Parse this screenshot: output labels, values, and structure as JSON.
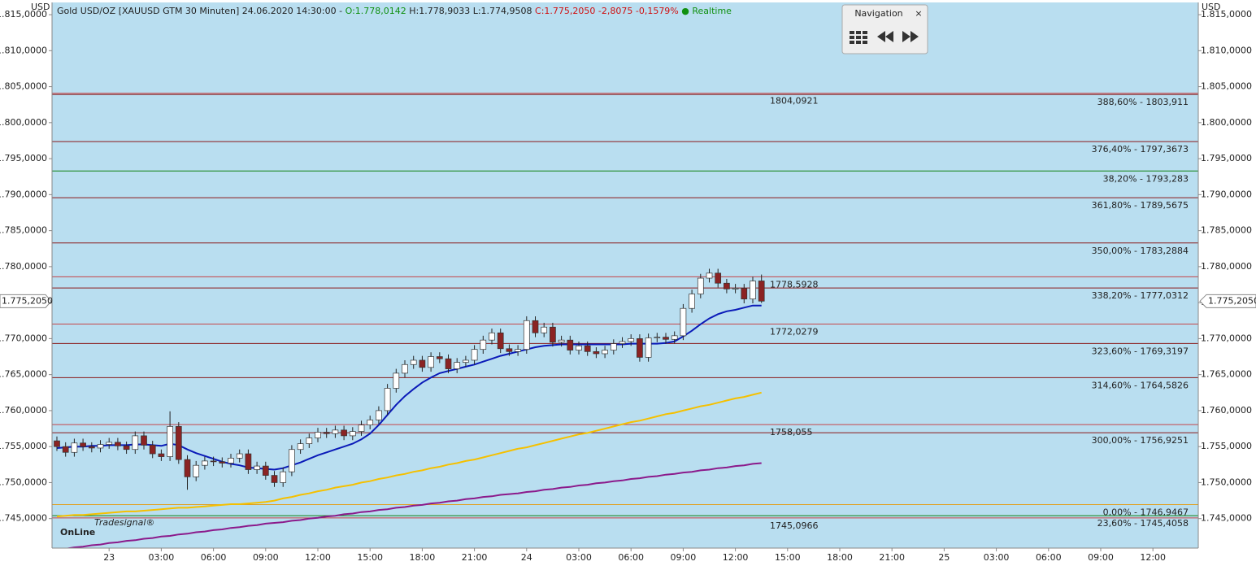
{
  "chart_data": {
    "type": "candlestick",
    "header": [
      {
        "text": "Gold USD/OZ [XAUUSD GTM 30 Minuten] 24.06.2020 14:30:00 - ",
        "color": "#222222"
      },
      {
        "text": "O:1.778,0142",
        "color": "#109010"
      },
      {
        "text": " H:1.778,9033 L:1.774,9508 ",
        "color": "#222222"
      },
      {
        "text": "C:1.775,2050 -2,8075 -0,1579%",
        "color": "#d01010"
      },
      {
        "text": " ● Realtime",
        "color": "#109010"
      }
    ],
    "unit": "USD",
    "navigation": {
      "title": "Navigation",
      "close": "×"
    },
    "logo": {
      "small": "Tradesignal®",
      "big": "OnLine"
    },
    "ylim": [
      1740.9,
      1816.7
    ],
    "yticks": [
      {
        "value": 1745,
        "label": "1.745,0000"
      },
      {
        "value": 1750,
        "label": "1.750,0000"
      },
      {
        "value": 1755,
        "label": "1.755,0000"
      },
      {
        "value": 1760,
        "label": "1.760,0000"
      },
      {
        "value": 1765,
        "label": "1.765,0000"
      },
      {
        "value": 1770,
        "label": "1.770,0000"
      },
      {
        "value": 1775,
        "label": "1.775,0000"
      },
      {
        "value": 1780,
        "label": "1.780,0000"
      },
      {
        "value": 1785,
        "label": "1.785,0000"
      },
      {
        "value": 1790,
        "label": "1.790,0000"
      },
      {
        "value": 1795,
        "label": "1.795,0000"
      },
      {
        "value": 1800,
        "label": "1.800,0000"
      },
      {
        "value": 1805,
        "label": "1.805,0000"
      },
      {
        "value": 1810,
        "label": "1.810,0000"
      },
      {
        "value": 1815,
        "label": "1.815,0000"
      }
    ],
    "last_price": {
      "value": 1775.205,
      "label": "1.775,2050"
    },
    "up_color": "#ffffff",
    "down_color": "#8b2323",
    "background": "#b9def0",
    "categories": [
      null,
      null,
      null,
      null,
      null,
      null,
      "23",
      null,
      null,
      null,
      null,
      null,
      "03:00",
      null,
      null,
      null,
      null,
      null,
      "06:00",
      null,
      null,
      null,
      null,
      null,
      "09:00",
      null,
      null,
      null,
      null,
      null,
      "12:00",
      null,
      null,
      null,
      null,
      null,
      "15:00",
      null,
      null,
      null,
      null,
      null,
      "18:00",
      null,
      null,
      null,
      null,
      null,
      "21:00",
      null,
      null,
      null,
      null,
      null,
      "24",
      null,
      null,
      null,
      null,
      null,
      "03:00",
      null,
      null,
      null,
      null,
      null,
      "06:00",
      null,
      null,
      null,
      null,
      null,
      "09:00",
      null,
      null,
      null,
      null,
      null,
      "12:00",
      null,
      null,
      null,
      null,
      null,
      "15:00",
      null,
      null,
      null,
      null,
      null,
      "18:00",
      null,
      null,
      null,
      null,
      null,
      "21:00",
      null,
      null,
      null,
      null,
      null,
      "25",
      null,
      null,
      null,
      null,
      null,
      "03:00",
      null,
      null,
      null,
      null,
      null,
      "06:00",
      null,
      null,
      null,
      null,
      null,
      "09:00",
      null,
      null,
      null,
      null,
      null,
      "12:00",
      null,
      null,
      null,
      null
    ],
    "open": [
      1755.8,
      1755.0,
      1754.2,
      1755.5,
      1755.0,
      1754.8,
      1755.3,
      1755.6,
      1755.1,
      1754.6,
      1756.5,
      1755.2,
      1754.0,
      1753.6,
      1757.8,
      1753.2,
      1750.8,
      1752.4,
      1753.0,
      1752.9,
      1752.7,
      1753.4,
      1754.0,
      1751.8,
      1752.3,
      1751.0,
      1750.0,
      1751.5,
      1754.6,
      1755.4,
      1756.2,
      1757.0,
      1756.8,
      1757.3,
      1756.5,
      1757.1,
      1758.0,
      1758.7,
      1760.0,
      1763.1,
      1765.2,
      1766.4,
      1767.0,
      1766.0,
      1767.5,
      1767.2,
      1765.8,
      1766.7,
      1767.0,
      1768.5,
      1769.8,
      1770.8,
      1768.6,
      1768.2,
      1768.5,
      1772.5,
      1770.8,
      1771.6,
      1769.5,
      1769.8,
      1768.4,
      1769.0,
      1768.2,
      1767.9,
      1768.4,
      1769.3,
      1769.6,
      1770.0,
      1767.4,
      1770.1,
      1770.2,
      1769.9,
      1770.4,
      1774.2,
      1776.2,
      1778.4,
      1779.1,
      1777.7,
      1776.9,
      1777.0,
      1775.5,
      1778.0142,
      null,
      null,
      null,
      null,
      null,
      null,
      null,
      null,
      null,
      null,
      null,
      null,
      null,
      null,
      null,
      null,
      null,
      null,
      null,
      null,
      null,
      null,
      null,
      null,
      null,
      null,
      null,
      null,
      null,
      null,
      null,
      null,
      null,
      null,
      null,
      null,
      null,
      null,
      null,
      null,
      null,
      null,
      null,
      null,
      null,
      null,
      null,
      null,
      null
    ],
    "high": [
      1756.4,
      1755.6,
      1756.1,
      1756.1,
      1755.6,
      1755.9,
      1756.2,
      1756.2,
      1755.7,
      1757.1,
      1757.1,
      1755.8,
      1754.6,
      1759.9,
      1758.4,
      1753.8,
      1753.0,
      1753.6,
      1753.6,
      1753.5,
      1754.0,
      1754.6,
      1754.6,
      1752.9,
      1752.9,
      1751.6,
      1752.1,
      1755.2,
      1756.0,
      1756.8,
      1757.6,
      1757.6,
      1757.9,
      1757.9,
      1757.7,
      1758.6,
      1759.3,
      1760.6,
      1763.7,
      1765.8,
      1767.0,
      1767.6,
      1767.6,
      1768.1,
      1768.1,
      1767.8,
      1767.3,
      1767.6,
      1769.1,
      1770.4,
      1771.4,
      1771.4,
      1769.2,
      1769.1,
      1773.1,
      1773.1,
      1772.2,
      1772.2,
      1770.4,
      1770.4,
      1769.6,
      1769.6,
      1768.8,
      1769.0,
      1769.9,
      1770.2,
      1770.6,
      1770.6,
      1770.7,
      1770.8,
      1770.8,
      1771.0,
      1774.8,
      1776.8,
      1779.0,
      1779.7,
      1779.7,
      1778.3,
      1777.6,
      1777.6,
      1778.6,
      1778.9033,
      null,
      null,
      null,
      null,
      null,
      null,
      null,
      null,
      null,
      null,
      null,
      null,
      null,
      null,
      null,
      null,
      null,
      null,
      null,
      null,
      null,
      null,
      null,
      null,
      null,
      null,
      null,
      null,
      null,
      null,
      null,
      null,
      null,
      null,
      null,
      null,
      null,
      null,
      null,
      null,
      null,
      null,
      null,
      null,
      null,
      null,
      null,
      null,
      null
    ],
    "low": [
      1754.4,
      1753.6,
      1753.6,
      1754.4,
      1754.2,
      1754.2,
      1754.7,
      1754.5,
      1754.0,
      1754.0,
      1754.6,
      1753.4,
      1753.0,
      1753.0,
      1752.6,
      1749.0,
      1750.2,
      1751.8,
      1752.3,
      1752.1,
      1752.1,
      1752.8,
      1751.2,
      1751.2,
      1750.4,
      1749.4,
      1749.4,
      1750.9,
      1754.0,
      1754.8,
      1755.6,
      1756.2,
      1756.2,
      1755.9,
      1755.9,
      1756.5,
      1757.4,
      1758.1,
      1759.4,
      1762.5,
      1764.6,
      1765.8,
      1765.4,
      1765.4,
      1766.6,
      1765.2,
      1765.2,
      1766.1,
      1766.4,
      1767.9,
      1769.2,
      1768.0,
      1767.6,
      1767.6,
      1767.9,
      1770.2,
      1770.2,
      1768.9,
      1768.9,
      1767.8,
      1767.8,
      1767.6,
      1767.3,
      1767.3,
      1767.8,
      1768.7,
      1769.0,
      1766.8,
      1766.8,
      1769.5,
      1769.3,
      1769.3,
      1769.8,
      1773.6,
      1775.6,
      1777.8,
      1777.1,
      1776.3,
      1776.3,
      1774.9,
      1774.9,
      1774.9508,
      null,
      null,
      null,
      null,
      null,
      null,
      null,
      null,
      null,
      null,
      null,
      null,
      null,
      null,
      null,
      null,
      null,
      null,
      null,
      null,
      null,
      null,
      null,
      null,
      null,
      null,
      null,
      null,
      null,
      null,
      null,
      null,
      null,
      null,
      null,
      null,
      null,
      null,
      null,
      null,
      null,
      null,
      null,
      null,
      null,
      null,
      null,
      null,
      null
    ],
    "close": [
      1755.0,
      1754.2,
      1755.5,
      1755.0,
      1754.8,
      1755.3,
      1755.6,
      1755.1,
      1754.6,
      1756.5,
      1755.2,
      1754.0,
      1753.6,
      1757.8,
      1753.2,
      1750.8,
      1752.4,
      1753.0,
      1752.9,
      1752.7,
      1753.4,
      1754.0,
      1751.8,
      1752.3,
      1751.0,
      1750.0,
      1751.5,
      1754.6,
      1755.4,
      1756.2,
      1757.0,
      1756.8,
      1757.3,
      1756.5,
      1757.1,
      1758.0,
      1758.7,
      1760.0,
      1763.1,
      1765.2,
      1766.4,
      1767.0,
      1766.0,
      1767.5,
      1767.2,
      1765.8,
      1766.7,
      1767.0,
      1768.5,
      1769.8,
      1770.8,
      1768.6,
      1768.2,
      1768.5,
      1772.5,
      1770.8,
      1771.6,
      1769.5,
      1769.8,
      1768.4,
      1769.0,
      1768.2,
      1767.9,
      1768.4,
      1769.3,
      1769.6,
      1770.0,
      1767.4,
      1770.1,
      1770.2,
      1769.9,
      1770.4,
      1774.2,
      1776.2,
      1778.4,
      1779.1,
      1777.7,
      1776.9,
      1777.0,
      1775.5,
      1778.0,
      1775.205,
      null,
      null,
      null,
      null,
      null,
      null,
      null,
      null,
      null,
      null,
      null,
      null,
      null,
      null,
      null,
      null,
      null,
      null,
      null,
      null,
      null,
      null,
      null,
      null,
      null,
      null,
      null,
      null,
      null,
      null,
      null,
      null,
      null,
      null,
      null,
      null,
      null,
      null,
      null,
      null,
      null,
      null,
      null,
      null,
      null,
      null,
      null,
      null,
      null
    ],
    "series": [
      {
        "type": "line",
        "color": "#f5c000",
        "values": [
          1745.3,
          1745.4,
          1745.5,
          1745.5,
          1745.6,
          1745.7,
          1745.8,
          1745.9,
          1746.0,
          1746.0,
          1746.1,
          1746.2,
          1746.3,
          1746.4,
          1746.5,
          1746.5,
          1746.6,
          1746.7,
          1746.8,
          1746.9,
          1747.0,
          1747.0,
          1747.1,
          1747.2,
          1747.3,
          1747.5,
          1747.8,
          1748.0,
          1748.3,
          1748.5,
          1748.8,
          1749.0,
          1749.3,
          1749.5,
          1749.7,
          1750.0,
          1750.2,
          1750.5,
          1750.7,
          1751.0,
          1751.2,
          1751.5,
          1751.7,
          1752.0,
          1752.2,
          1752.5,
          1752.7,
          1753.0,
          1753.2,
          1753.5,
          1753.8,
          1754.1,
          1754.4,
          1754.7,
          1754.9,
          1755.2,
          1755.5,
          1755.8,
          1756.1,
          1756.4,
          1756.7,
          1756.9,
          1757.2,
          1757.5,
          1757.8,
          1758.1,
          1758.4,
          1758.6,
          1758.9,
          1759.2,
          1759.5,
          1759.7,
          1760.0,
          1760.3,
          1760.6,
          1760.8,
          1761.1,
          1761.4,
          1761.7,
          1761.9,
          1762.2,
          1762.5,
          null,
          null,
          null,
          null,
          null,
          null,
          null,
          null,
          null,
          null,
          null,
          null,
          null,
          null,
          null,
          null,
          null,
          null,
          null,
          null,
          null,
          null,
          null,
          null,
          null,
          null,
          null,
          null,
          null,
          null,
          null,
          null,
          null,
          null,
          null,
          null,
          null,
          null,
          null,
          null,
          null,
          null,
          null,
          null,
          null,
          null,
          null,
          null,
          null
        ]
      },
      {
        "type": "line",
        "color": "#8b1a8b",
        "values": [
          1740.7,
          1740.8,
          1741.0,
          1741.1,
          1741.3,
          1741.4,
          1741.6,
          1741.7,
          1741.9,
          1742.0,
          1742.2,
          1742.3,
          1742.5,
          1742.6,
          1742.8,
          1742.9,
          1743.1,
          1743.2,
          1743.4,
          1743.5,
          1743.7,
          1743.8,
          1744.0,
          1744.1,
          1744.3,
          1744.4,
          1744.5,
          1744.7,
          1744.8,
          1745.0,
          1745.1,
          1745.3,
          1745.4,
          1745.6,
          1745.7,
          1745.9,
          1746.0,
          1746.2,
          1746.3,
          1746.5,
          1746.6,
          1746.8,
          1746.9,
          1747.1,
          1747.2,
          1747.4,
          1747.5,
          1747.7,
          1747.8,
          1748.0,
          1748.1,
          1748.3,
          1748.4,
          1748.5,
          1748.7,
          1748.8,
          1749.0,
          1749.1,
          1749.3,
          1749.4,
          1749.6,
          1749.7,
          1749.9,
          1750.0,
          1750.2,
          1750.3,
          1750.5,
          1750.6,
          1750.8,
          1750.9,
          1751.1,
          1751.2,
          1751.4,
          1751.5,
          1751.7,
          1751.8,
          1752.0,
          1752.1,
          1752.3,
          1752.4,
          1752.6,
          1752.7,
          null,
          null,
          null,
          null,
          null,
          null,
          null,
          null,
          null,
          null,
          null,
          null,
          null,
          null,
          null,
          null,
          null,
          null,
          null,
          null,
          null,
          null,
          null,
          null,
          null,
          null,
          null,
          null,
          null,
          null,
          null,
          null,
          null,
          null,
          null,
          null,
          null,
          null,
          null,
          null,
          null,
          null,
          null,
          null,
          null,
          null,
          null,
          null,
          null
        ]
      },
      {
        "type": "line",
        "color": "#0a1ab8",
        "values": [
          1754.8,
          1754.9,
          1755.0,
          1755.0,
          1755.1,
          1755.1,
          1755.2,
          1755.2,
          1755.2,
          1755.3,
          1755.3,
          1755.2,
          1755.1,
          1755.4,
          1755.2,
          1754.6,
          1754.1,
          1753.7,
          1753.3,
          1752.9,
          1752.6,
          1752.4,
          1752.1,
          1752.0,
          1751.9,
          1751.8,
          1752.0,
          1752.4,
          1752.8,
          1753.3,
          1753.8,
          1754.2,
          1754.6,
          1755.0,
          1755.4,
          1756.0,
          1756.8,
          1758.0,
          1759.4,
          1760.8,
          1762.0,
          1763.0,
          1763.9,
          1764.6,
          1765.2,
          1765.5,
          1765.8,
          1766.1,
          1766.4,
          1766.8,
          1767.2,
          1767.6,
          1767.9,
          1768.2,
          1768.5,
          1768.8,
          1769.0,
          1769.1,
          1769.2,
          1769.2,
          1769.2,
          1769.2,
          1769.2,
          1769.2,
          1769.2,
          1769.2,
          1769.3,
          1769.3,
          1769.3,
          1769.3,
          1769.4,
          1769.6,
          1770.3,
          1771.1,
          1772.0,
          1772.8,
          1773.4,
          1773.8,
          1774.0,
          1774.3,
          1774.6,
          1774.6,
          null,
          null,
          null,
          null,
          null,
          null,
          null,
          null,
          null,
          null,
          null,
          null,
          null,
          null,
          null,
          null,
          null,
          null,
          null,
          null,
          null,
          null,
          null,
          null,
          null,
          null,
          null,
          null,
          null,
          null,
          null,
          null,
          null,
          null,
          null,
          null,
          null,
          null,
          null,
          null,
          null,
          null,
          null,
          null,
          null,
          null,
          null,
          null,
          null
        ]
      }
    ],
    "markers": [
      {
        "value": 1804.0921,
        "label": "1804,0921"
      },
      {
        "value": 1778.5928,
        "label": "1778,5928"
      },
      {
        "value": 1772.0279,
        "label": "1772,0279"
      },
      {
        "value": 1758.055,
        "label": "1758,055"
      },
      {
        "value": 1745.0966,
        "label": "1745,0966"
      }
    ],
    "marker_color": "#c81e1e",
    "levels": [
      {
        "value": 1803.911,
        "label": "388,60% - 1803,911",
        "color": "#8b1a1a"
      },
      {
        "value": 1797.3673,
        "label": "376,40% - 1797,3673",
        "color": "#8b1a1a"
      },
      {
        "value": 1793.283,
        "label": "38,20% - 1793,283",
        "color": "#108010"
      },
      {
        "value": 1789.5675,
        "label": "361,80% - 1789,5675",
        "color": "#8b1a1a"
      },
      {
        "value": 1783.2884,
        "label": "350,00% - 1783,2884",
        "color": "#8b1a1a"
      },
      {
        "value": 1777.0312,
        "label": "338,20% - 1777,0312",
        "color": "#8b1a1a"
      },
      {
        "value": 1769.3197,
        "label": "323,60% - 1769,3197",
        "color": "#8b1a1a"
      },
      {
        "value": 1764.5826,
        "label": "314,60% - 1764,5826",
        "color": "#8b1a1a"
      },
      {
        "value": 1756.9251,
        "label": "300,00% - 1756,9251",
        "color": "#8b1a1a"
      },
      {
        "value": 1746.9467,
        "label": "0,00% - 1746,9467",
        "color": "#e0a020"
      },
      {
        "value": 1745.4058,
        "label": "23,60% - 1745,4058",
        "color": "#108010"
      }
    ]
  }
}
